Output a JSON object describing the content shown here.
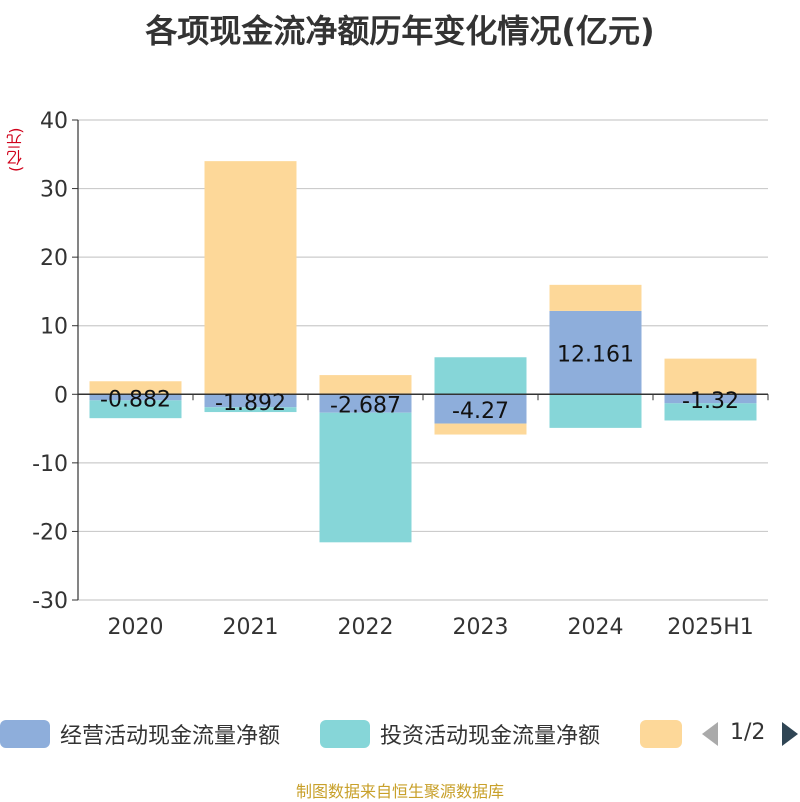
{
  "chart_data": {
    "type": "bar",
    "stacked": true,
    "title": "各项现金流净额历年变化情况(亿元)",
    "ylabel": "(亿元)",
    "categories": [
      "2020",
      "2021",
      "2022",
      "2023",
      "2024",
      "2025H1"
    ],
    "ylim": [
      -30,
      40
    ],
    "yticks": [
      40,
      30,
      20,
      10,
      0,
      -10,
      -20,
      -30
    ],
    "grid": true,
    "series": [
      {
        "name": "经营活动现金流量净额",
        "color": "#8eaedb",
        "values": [
          -0.882,
          -1.892,
          -2.687,
          -4.27,
          12.161,
          -1.32
        ]
      },
      {
        "name": "投资活动现金流量净额",
        "color": "#86d6d8",
        "values": [
          -2.6,
          -0.7,
          -18.9,
          5.4,
          -4.9,
          -2.5
        ]
      },
      {
        "name": "",
        "color": "#fdd899",
        "values": [
          1.9,
          34.0,
          2.8,
          -1.6,
          3.8,
          5.2
        ]
      }
    ],
    "data_labels": [
      "-0.882",
      "-1.892",
      "-2.687",
      "-4.27",
      "12.161",
      "-1.32"
    ]
  },
  "legend": {
    "items": [
      "经营活动现金流量净额",
      "投资活动现金流量净额",
      ""
    ],
    "page": "1/2"
  },
  "source": "制图数据来自恒生聚源数据库"
}
